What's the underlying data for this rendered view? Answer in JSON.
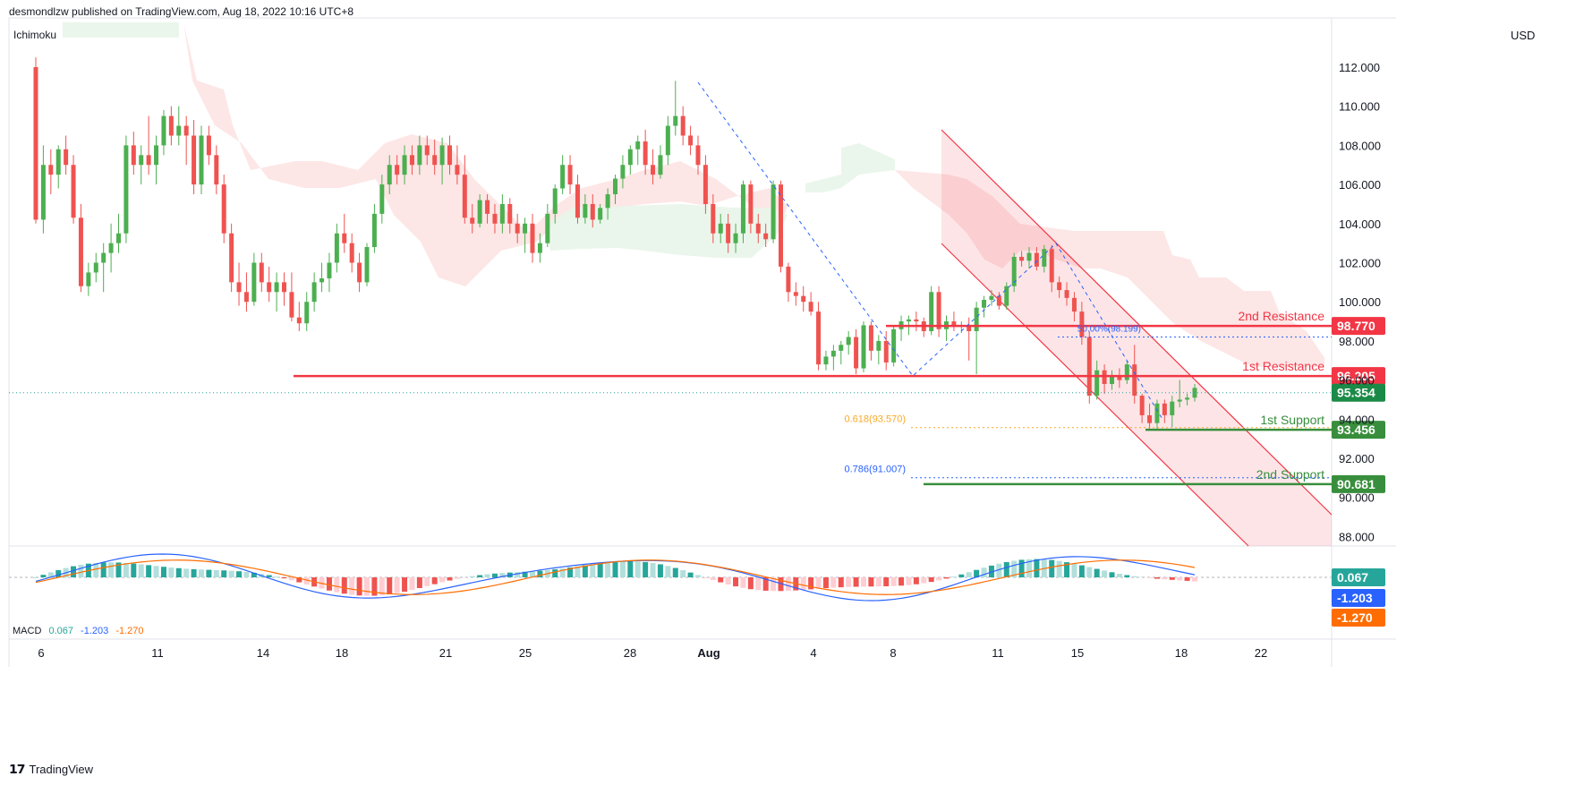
{
  "header": "desmondlzw published on TradingView.com, Aug 18, 2022 10:16 UTC+8",
  "indicator": "Ichimoku",
  "currency": "USD",
  "footer": "TradingView",
  "colors": {
    "up": "#26a69a",
    "upBody": "#4caf50",
    "down": "#ef5350",
    "resistance": "#f23645",
    "support": "#388e3c",
    "macd": "#2962ff",
    "signal": "#ff6d00",
    "channel": "#f23645",
    "fib618": "#f9a825",
    "fib786": "#2962ff"
  },
  "chart_data": {
    "type": "candlestick",
    "price_axis": {
      "min": 87,
      "max": 113,
      "ticks": [
        "112.000",
        "110.000",
        "108.000",
        "106.000",
        "104.000",
        "102.000",
        "100.000",
        "98.000",
        "96.000",
        "94.000",
        "92.000",
        "90.000",
        "88.000"
      ]
    },
    "time_axis": {
      "ticks": [
        "6",
        "11",
        "14",
        "18",
        "21",
        "25",
        "28",
        "Aug",
        "4",
        "8",
        "11",
        "15",
        "18",
        "22"
      ]
    },
    "candles": [
      [
        112.0,
        112.5,
        104.0,
        104.2
      ],
      [
        104.2,
        108.0,
        103.5,
        107.0
      ],
      [
        107.0,
        107.8,
        105.5,
        106.5
      ],
      [
        106.5,
        108.0,
        105.8,
        107.8
      ],
      [
        107.8,
        108.5,
        106.5,
        107.0
      ],
      [
        107.0,
        107.5,
        104.0,
        104.3
      ],
      [
        104.3,
        105.0,
        100.5,
        100.8
      ],
      [
        100.8,
        102.0,
        100.3,
        101.5
      ],
      [
        101.5,
        102.5,
        101.0,
        102.0
      ],
      [
        102.0,
        103.0,
        100.5,
        102.5
      ],
      [
        102.5,
        104.0,
        101.5,
        103.0
      ],
      [
        103.0,
        104.5,
        102.5,
        103.5
      ],
      [
        103.5,
        108.5,
        103.0,
        108.0
      ],
      [
        108.0,
        108.7,
        106.5,
        107.0
      ],
      [
        107.0,
        108.0,
        106.0,
        107.5
      ],
      [
        107.5,
        109.5,
        106.5,
        107.0
      ],
      [
        107.0,
        108.5,
        106.0,
        108.0
      ],
      [
        108.0,
        109.8,
        107.5,
        109.5
      ],
      [
        109.5,
        110.0,
        108.0,
        108.5
      ],
      [
        108.5,
        110.0,
        108.0,
        109.0
      ],
      [
        109.0,
        109.5,
        107.0,
        108.5
      ],
      [
        108.5,
        109.3,
        105.5,
        106.0
      ],
      [
        106.0,
        109.0,
        105.5,
        108.5
      ],
      [
        108.5,
        109.0,
        107.0,
        107.5
      ],
      [
        107.5,
        108.0,
        105.5,
        106.0
      ],
      [
        106.0,
        106.5,
        103.0,
        103.5
      ],
      [
        103.5,
        104.0,
        100.5,
        101.0
      ],
      [
        101.0,
        102.0,
        99.8,
        100.5
      ],
      [
        100.5,
        101.5,
        99.5,
        100.0
      ],
      [
        100.0,
        102.5,
        99.8,
        102.0
      ],
      [
        102.0,
        102.5,
        100.5,
        101.0
      ],
      [
        101.0,
        101.8,
        100.0,
        100.5
      ],
      [
        100.5,
        101.5,
        99.5,
        101.0
      ],
      [
        101.0,
        101.5,
        99.8,
        100.5
      ],
      [
        100.5,
        101.5,
        99.0,
        99.2
      ],
      [
        99.2,
        100.0,
        98.5,
        98.9
      ],
      [
        98.9,
        100.5,
        98.5,
        100.0
      ],
      [
        100.0,
        101.5,
        99.5,
        101.0
      ],
      [
        101.0,
        102.0,
        100.5,
        101.2
      ],
      [
        101.2,
        102.5,
        100.5,
        102.0
      ],
      [
        102.0,
        104.0,
        101.5,
        103.5
      ],
      [
        103.5,
        104.5,
        102.5,
        103.0
      ],
      [
        103.0,
        103.5,
        101.5,
        102.0
      ],
      [
        102.0,
        102.5,
        100.5,
        101.0
      ],
      [
        101.0,
        103.0,
        100.8,
        102.8
      ],
      [
        102.8,
        105.0,
        102.5,
        104.5
      ],
      [
        104.5,
        106.5,
        104.0,
        106.0
      ],
      [
        106.0,
        107.5,
        105.5,
        107.0
      ],
      [
        107.0,
        107.5,
        106.0,
        106.5
      ],
      [
        106.5,
        108.0,
        106.0,
        107.5
      ],
      [
        107.5,
        108.0,
        106.5,
        107.0
      ],
      [
        107.0,
        108.5,
        106.5,
        108.0
      ],
      [
        108.0,
        108.5,
        107.0,
        107.5
      ],
      [
        107.5,
        108.3,
        106.5,
        107.0
      ],
      [
        107.0,
        108.4,
        106.0,
        108.0
      ],
      [
        108.0,
        108.5,
        106.5,
        107.0
      ],
      [
        107.0,
        108.0,
        106.0,
        106.5
      ],
      [
        106.5,
        107.5,
        104.0,
        104.3
      ],
      [
        104.3,
        105.0,
        103.5,
        104.0
      ],
      [
        104.0,
        105.5,
        103.8,
        105.2
      ],
      [
        105.2,
        105.5,
        104.0,
        104.5
      ],
      [
        104.5,
        105.0,
        103.5,
        104.0
      ],
      [
        104.0,
        105.5,
        103.5,
        105.0
      ],
      [
        105.0,
        105.3,
        103.5,
        104.0
      ],
      [
        104.0,
        104.5,
        103.0,
        103.5
      ],
      [
        103.5,
        104.3,
        102.5,
        104.0
      ],
      [
        104.0,
        104.5,
        102.0,
        102.5
      ],
      [
        102.5,
        103.5,
        102.0,
        103.0
      ],
      [
        103.0,
        105.0,
        102.8,
        104.5
      ],
      [
        104.5,
        106.0,
        104.0,
        105.8
      ],
      [
        105.8,
        107.5,
        105.5,
        107.0
      ],
      [
        107.0,
        107.5,
        105.5,
        106.0
      ],
      [
        106.0,
        106.5,
        104.0,
        104.3
      ],
      [
        104.3,
        105.5,
        104.0,
        105.0
      ],
      [
        105.0,
        105.5,
        103.8,
        104.2
      ],
      [
        104.2,
        105.0,
        104.0,
        104.8
      ],
      [
        104.8,
        105.8,
        104.2,
        105.5
      ],
      [
        105.5,
        106.5,
        105.0,
        106.3
      ],
      [
        106.3,
        107.5,
        105.8,
        107.0
      ],
      [
        107.0,
        108.0,
        106.5,
        107.8
      ],
      [
        107.8,
        108.5,
        107.0,
        108.2
      ],
      [
        108.2,
        108.8,
        106.5,
        107.0
      ],
      [
        107.0,
        107.8,
        106.0,
        106.5
      ],
      [
        106.5,
        108.0,
        106.3,
        107.5
      ],
      [
        107.5,
        109.5,
        107.0,
        109.0
      ],
      [
        109.0,
        111.3,
        108.5,
        109.5
      ],
      [
        109.5,
        110.0,
        108.0,
        108.5
      ],
      [
        108.5,
        109.0,
        107.5,
        108.0
      ],
      [
        108.0,
        108.5,
        106.5,
        107.0
      ],
      [
        107.0,
        107.5,
        104.5,
        105.0
      ],
      [
        105.0,
        105.5,
        103.0,
        103.5
      ],
      [
        103.5,
        104.5,
        103.0,
        104.0
      ],
      [
        104.0,
        104.5,
        102.5,
        103.0
      ],
      [
        103.0,
        104.0,
        102.5,
        103.5
      ],
      [
        103.5,
        106.2,
        103.0,
        106.0
      ],
      [
        106.0,
        106.2,
        103.5,
        104.0
      ],
      [
        104.0,
        104.5,
        103.0,
        103.5
      ],
      [
        103.5,
        104.0,
        102.8,
        103.2
      ],
      [
        103.2,
        106.2,
        103.0,
        106.0
      ],
      [
        106.0,
        106.2,
        101.5,
        101.8
      ],
      [
        101.8,
        102.0,
        100.0,
        100.5
      ],
      [
        100.5,
        101.0,
        99.8,
        100.3
      ],
      [
        100.3,
        100.8,
        99.5,
        100.0
      ],
      [
        100.0,
        100.5,
        99.3,
        99.5
      ],
      [
        99.5,
        100.0,
        96.5,
        96.8
      ],
      [
        96.8,
        97.5,
        96.5,
        97.2
      ],
      [
        97.2,
        97.8,
        96.5,
        97.5
      ],
      [
        97.5,
        98.0,
        96.8,
        97.8
      ],
      [
        97.8,
        98.5,
        97.3,
        98.2
      ],
      [
        98.2,
        98.6,
        96.3,
        96.6
      ],
      [
        96.6,
        99.0,
        96.4,
        98.8
      ],
      [
        98.8,
        99.0,
        97.0,
        97.5
      ],
      [
        97.5,
        98.3,
        96.8,
        98.0
      ],
      [
        98.0,
        98.5,
        96.5,
        96.9
      ],
      [
        96.9,
        98.8,
        96.7,
        98.6
      ],
      [
        98.6,
        99.3,
        98.0,
        99.0
      ],
      [
        99.0,
        99.3,
        98.3,
        99.1
      ],
      [
        99.1,
        99.5,
        98.5,
        99.0
      ],
      [
        99.0,
        99.2,
        98.2,
        98.5
      ],
      [
        98.5,
        100.8,
        98.3,
        100.5
      ],
      [
        100.5,
        100.8,
        98.2,
        98.6
      ],
      [
        98.6,
        99.3,
        98.0,
        99.0
      ],
      [
        99.0,
        99.5,
        98.5,
        98.8
      ],
      [
        98.8,
        99.0,
        98.4,
        98.8
      ],
      [
        98.8,
        99.2,
        97.0,
        98.5
      ],
      [
        98.5,
        100.0,
        96.3,
        99.7
      ],
      [
        99.7,
        100.3,
        99.2,
        100.1
      ],
      [
        100.1,
        100.6,
        99.8,
        100.3
      ],
      [
        100.3,
        100.5,
        99.6,
        99.8
      ],
      [
        99.8,
        101.0,
        99.6,
        100.8
      ],
      [
        100.8,
        102.5,
        100.5,
        102.3
      ],
      [
        102.3,
        102.6,
        101.8,
        102.1
      ],
      [
        102.1,
        102.8,
        101.7,
        102.5
      ],
      [
        102.5,
        102.8,
        101.6,
        101.8
      ],
      [
        101.8,
        102.9,
        101.5,
        102.7
      ],
      [
        102.7,
        102.9,
        100.5,
        101.0
      ],
      [
        101.0,
        101.3,
        100.2,
        100.6
      ],
      [
        100.6,
        101.0,
        99.8,
        100.2
      ],
      [
        100.2,
        100.5,
        99.0,
        99.5
      ],
      [
        99.5,
        100.0,
        97.8,
        98.2
      ],
      [
        98.2,
        98.5,
        94.8,
        95.2
      ],
      [
        95.2,
        97.0,
        95.0,
        96.5
      ],
      [
        96.5,
        96.8,
        95.3,
        95.8
      ],
      [
        95.8,
        96.5,
        95.5,
        96.2
      ],
      [
        96.2,
        96.6,
        95.6,
        96.0
      ],
      [
        96.0,
        97.0,
        95.8,
        96.8
      ],
      [
        96.8,
        97.8,
        94.8,
        95.2
      ],
      [
        95.2,
        95.3,
        93.8,
        94.2
      ],
      [
        94.2,
        94.8,
        93.5,
        93.8
      ],
      [
        93.8,
        95.0,
        93.5,
        94.8
      ],
      [
        94.8,
        95.0,
        93.8,
        94.2
      ],
      [
        94.2,
        95.2,
        93.6,
        94.9
      ],
      [
        94.9,
        96.0,
        94.6,
        95.0
      ],
      [
        95.0,
        95.3,
        94.7,
        95.1
      ],
      [
        95.1,
        95.8,
        94.9,
        95.6
      ]
    ],
    "levels": [
      {
        "name": "2nd Resistance",
        "value": "98.770",
        "price": 98.77
      },
      {
        "name": "1st Resistance",
        "value": "96.205",
        "price": 96.205
      },
      {
        "name": "1st Support",
        "value": "93.456",
        "price": 93.456
      },
      {
        "name": "2nd Support",
        "value": "90.681",
        "price": 90.681
      }
    ],
    "current_price": {
      "value": "95.354",
      "price": 95.354
    },
    "fibonacci": [
      {
        "label": "0.618(93.570)",
        "price": 93.57
      },
      {
        "label": "0.786(91.007)",
        "price": 91.007
      },
      {
        "label": "50.00%(98.199)",
        "price": 98.199
      }
    ],
    "macd": {
      "label": "MACD",
      "hist": "0.067",
      "macd": "-1.203",
      "signal": "-1.270"
    }
  }
}
